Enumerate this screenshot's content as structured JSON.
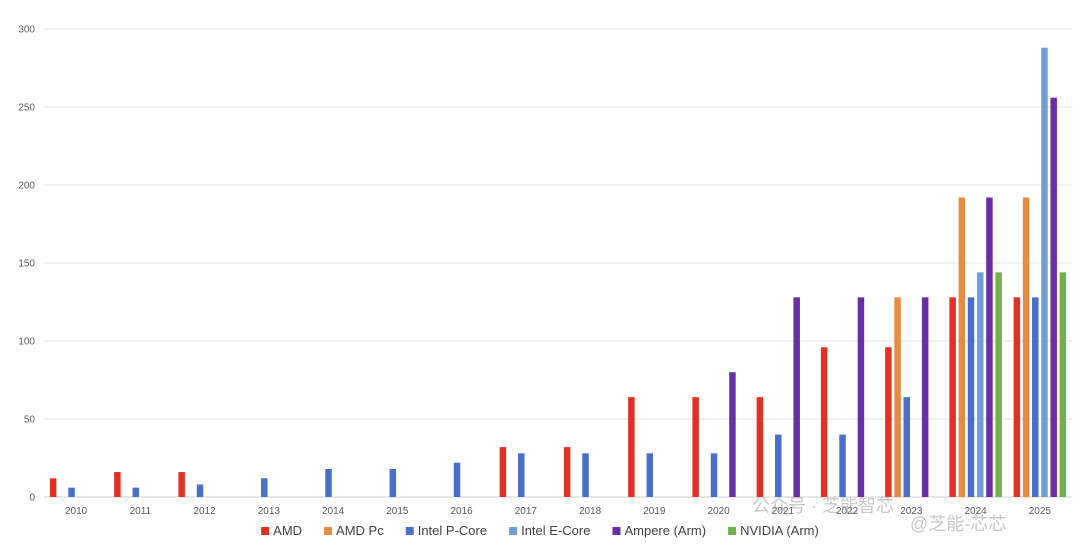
{
  "chart_data": {
    "type": "bar",
    "title": "",
    "xlabel": "",
    "ylabel": "",
    "ylim": [
      0,
      300
    ],
    "yticks": [
      0,
      50,
      100,
      150,
      200,
      250,
      300
    ],
    "grid": true,
    "legend_position": "bottom",
    "categories": [
      "2010",
      "2011",
      "2012",
      "2013",
      "2014",
      "2015",
      "2016",
      "2017",
      "2018",
      "2019",
      "2020",
      "2021",
      "2022",
      "2023",
      "2024",
      "2025"
    ],
    "series": [
      {
        "name": "AMD",
        "color": "#e03127",
        "values": [
          12,
          16,
          16,
          null,
          null,
          null,
          null,
          32,
          32,
          64,
          64,
          64,
          96,
          96,
          128,
          128
        ]
      },
      {
        "name": "AMD Pc",
        "color": "#e58c44",
        "values": [
          null,
          null,
          null,
          null,
          null,
          null,
          null,
          null,
          null,
          null,
          null,
          null,
          null,
          128,
          192,
          192
        ]
      },
      {
        "name": "Intel P-Core",
        "color": "#4a6fc7",
        "values": [
          6,
          6,
          8,
          12,
          18,
          18,
          22,
          28,
          28,
          28,
          28,
          40,
          40,
          64,
          128,
          128
        ]
      },
      {
        "name": "Intel E-Core",
        "color": "#6e9fd8",
        "values": [
          null,
          null,
          null,
          null,
          null,
          null,
          null,
          null,
          null,
          null,
          null,
          null,
          null,
          null,
          144,
          288
        ]
      },
      {
        "name": "Ampere (Arm)",
        "color": "#6a2fa3",
        "values": [
          null,
          null,
          null,
          null,
          null,
          null,
          null,
          null,
          null,
          null,
          80,
          128,
          128,
          128,
          192,
          256
        ]
      },
      {
        "name": "NVIDIA (Arm)",
        "color": "#72b04e",
        "values": [
          null,
          null,
          null,
          null,
          null,
          null,
          null,
          null,
          null,
          null,
          null,
          null,
          null,
          null,
          144,
          144
        ]
      }
    ]
  },
  "watermark": {
    "text_left": "公众号 · 芝能智芯",
    "text_right": "@芝能-芯芯"
  }
}
